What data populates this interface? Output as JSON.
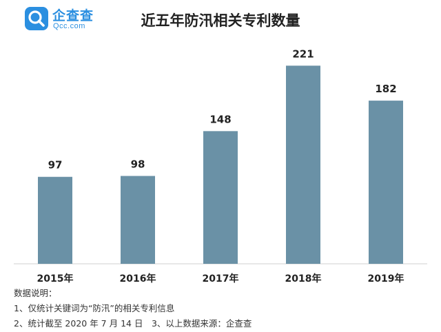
{
  "logo": {
    "name": "企查查",
    "domain": "Qcc.com"
  },
  "chart_data": {
    "type": "bar",
    "title": "近五年防汛相关专利数量",
    "categories": [
      "2015年",
      "2016年",
      "2017年",
      "2018年",
      "2019年"
    ],
    "values": [
      97,
      98,
      148,
      221,
      182
    ],
    "xlabel": "",
    "ylabel": "",
    "ylim": [
      0,
      250
    ],
    "grid": false,
    "bar_color": "#6a91a6"
  },
  "notes": {
    "heading": "数据说明：",
    "line1": "1、仅统计关键词为“防汛”的相关专利信息",
    "line2": "2、统计截至 2020 年 7 月 14 日　3、以上数据来源：企查查"
  }
}
